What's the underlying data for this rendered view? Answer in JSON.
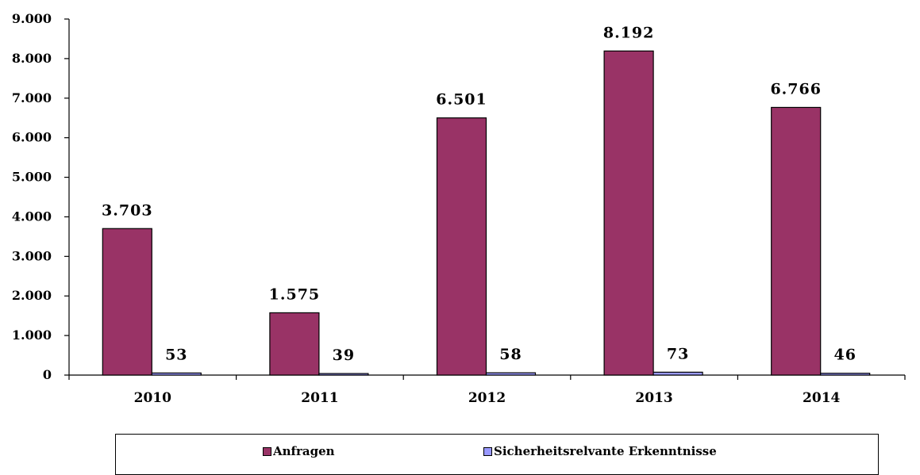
{
  "chart_data": {
    "type": "bar",
    "categories": [
      "2010",
      "2011",
      "2012",
      "2013",
      "2014"
    ],
    "series": [
      {
        "name": "Anfragen",
        "color": "#993366",
        "values": [
          3703,
          1575,
          6501,
          8192,
          6766
        ],
        "labels": [
          "3.703",
          "1.575",
          "6.501",
          "8.192",
          "6.766"
        ]
      },
      {
        "name": "Sicherheitsrelvante Erkenntnisse",
        "color": "#9999ff",
        "values": [
          53,
          39,
          58,
          73,
          46
        ],
        "labels": [
          "53",
          "39",
          "58",
          "73",
          "46"
        ]
      }
    ],
    "ylim": [
      0,
      9000
    ],
    "yticks": [
      0,
      1000,
      2000,
      3000,
      4000,
      5000,
      6000,
      7000,
      8000,
      9000
    ],
    "ytick_labels": [
      "0",
      "1.000",
      "2.000",
      "3.000",
      "4.000",
      "5.000",
      "6.000",
      "7.000",
      "8.000",
      "9.000"
    ],
    "grid": false,
    "legend_position": "bottom"
  }
}
